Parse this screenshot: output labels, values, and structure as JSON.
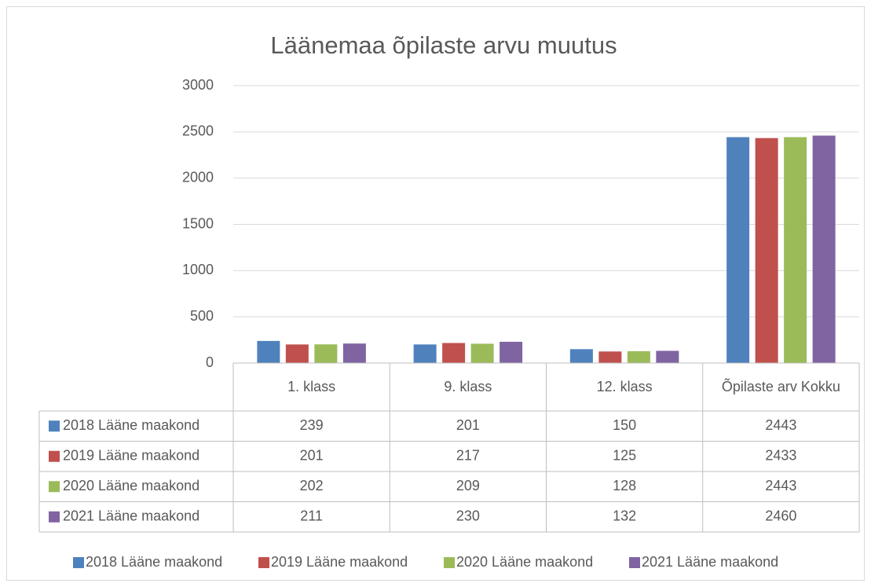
{
  "chart_data": {
    "type": "bar",
    "title": "Läänemaa õpilaste arvu muutus",
    "categories": [
      "1. klass",
      "9. klass",
      "12. klass",
      "Õpilaste arv Kokku"
    ],
    "series": [
      {
        "name": "2018 Lääne maakond",
        "color": "#4f81bd",
        "values": [
          239,
          201,
          150,
          2443
        ]
      },
      {
        "name": "2019 Lääne maakond",
        "color": "#c0504d",
        "values": [
          201,
          217,
          125,
          2433
        ]
      },
      {
        "name": "2020 Lääne maakond",
        "color": "#9bbb59",
        "values": [
          202,
          209,
          128,
          2443
        ]
      },
      {
        "name": "2021 Lääne maakond",
        "color": "#8064a2",
        "values": [
          211,
          230,
          132,
          2460
        ]
      }
    ],
    "ylim": [
      0,
      3000
    ],
    "yticks": [
      0,
      500,
      1000,
      1500,
      2000,
      2500,
      3000
    ],
    "grid": true,
    "legend": "bottom"
  }
}
